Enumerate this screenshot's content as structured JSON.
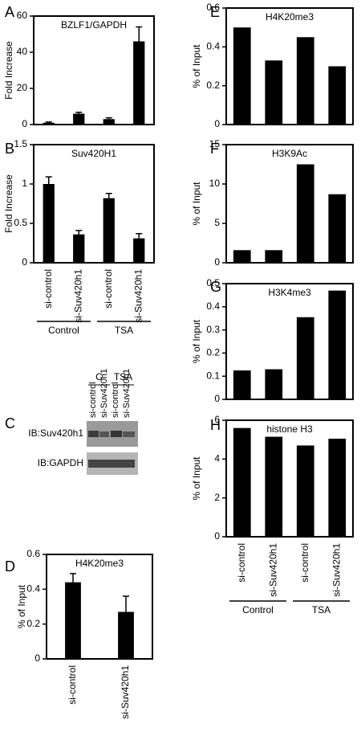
{
  "chart_data": [
    {
      "type": "bar",
      "label": "A",
      "title": "BZLF1/GAPDH",
      "y_label": "Fold Increase",
      "color": "#000000",
      "categories": [
        null,
        null,
        null,
        null
      ],
      "values": [
        1,
        6,
        3,
        46
      ],
      "errors": [
        0.4,
        0.8,
        0.7,
        8
      ],
      "ylim": [
        0,
        60
      ],
      "yticks": [
        0,
        20,
        40,
        60
      ]
    },
    {
      "type": "bar",
      "label": "B",
      "title": "Suv420H1",
      "y_label": "Fold Increase",
      "color": "#000000",
      "categories": [
        "si-control",
        "si-Suv420h1",
        "si-control",
        "si-Suv420h1"
      ],
      "values": [
        1.0,
        0.36,
        0.82,
        0.31
      ],
      "errors": [
        0.09,
        0.05,
        0.06,
        0.06
      ],
      "ylim": [
        0,
        1.5
      ],
      "yticks": [
        0,
        0.5,
        1,
        1.5
      ],
      "groups": [
        "Control",
        "TSA"
      ]
    },
    {
      "type": "bar",
      "label": "D",
      "title": "H4K20me3",
      "y_label": "% of Input",
      "color": "#000000",
      "categories": [
        "si-control",
        "si-Suv420h1"
      ],
      "values": [
        0.44,
        0.27
      ],
      "errors": [
        0.05,
        0.09
      ],
      "ylim": [
        0,
        0.6
      ],
      "yticks": [
        0,
        0.2,
        0.4,
        0.6
      ]
    },
    {
      "type": "bar",
      "label": "E",
      "title": "H4K20me3",
      "y_label": "% of Input",
      "color": "#000000",
      "categories": [
        null,
        null,
        null,
        null
      ],
      "values": [
        0.5,
        0.33,
        0.45,
        0.3
      ],
      "ylim": [
        0,
        0.6
      ],
      "yticks": [
        0,
        0.2,
        0.4,
        0.6
      ]
    },
    {
      "type": "bar",
      "label": "F",
      "title": "H3K9Ac",
      "y_label": "% of Input",
      "color": "#000000",
      "categories": [
        null,
        null,
        null,
        null
      ],
      "values": [
        1.6,
        1.6,
        12.5,
        8.7
      ],
      "ylim": [
        0,
        15
      ],
      "yticks": [
        0,
        5,
        10,
        15
      ]
    },
    {
      "type": "bar",
      "label": "G",
      "title": "H3K4me3",
      "y_label": "% of Input",
      "color": "#000000",
      "categories": [
        null,
        null,
        null,
        null
      ],
      "values": [
        0.125,
        0.13,
        0.355,
        0.47
      ],
      "ylim": [
        0,
        0.5
      ],
      "yticks": [
        0,
        0.1,
        0.2,
        0.3,
        0.4,
        0.5
      ]
    },
    {
      "type": "bar",
      "label": "H",
      "title": "histone H3",
      "y_label": "% of Input",
      "color": "#000000",
      "categories": [
        "si-control",
        "si-Suv420h1",
        "si-control",
        "si-Suv420h1"
      ],
      "values": [
        5.6,
        5.15,
        4.7,
        5.05
      ],
      "ylim": [
        0,
        6
      ],
      "yticks": [
        0,
        2,
        4,
        6
      ],
      "groups": [
        "Control",
        "TSA"
      ]
    }
  ],
  "blot": {
    "label": "C",
    "groups": [
      "C",
      "TSA"
    ],
    "lanes": [
      "si-control",
      "si-Suv420h1",
      "si-control",
      "si-Suv420h1"
    ],
    "rows": [
      "IB:Suv420h1",
      "IB:GAPDH"
    ]
  }
}
